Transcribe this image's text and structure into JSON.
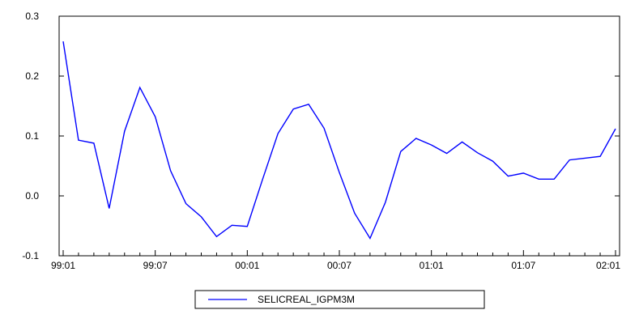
{
  "chart_data": {
    "type": "line",
    "title": "",
    "xlabel": "",
    "ylabel": "",
    "x": [
      "99:01",
      "99:02",
      "99:03",
      "99:04",
      "99:05",
      "99:06",
      "99:07",
      "99:08",
      "99:09",
      "99:10",
      "99:11",
      "99:12",
      "00:01",
      "00:02",
      "00:03",
      "00:04",
      "00:05",
      "00:06",
      "00:07",
      "00:08",
      "00:09",
      "00:10",
      "00:11",
      "00:12",
      "01:01",
      "01:02",
      "01:03",
      "01:04",
      "01:05",
      "01:06",
      "01:07",
      "01:08",
      "01:09",
      "01:10",
      "01:11",
      "01:12",
      "02:01"
    ],
    "x_ticks": [
      "99:01",
      "99:07",
      "00:01",
      "00:07",
      "01:01",
      "01:07",
      "02:01"
    ],
    "ylim": [
      -0.1,
      0.3
    ],
    "y_ticks": [
      "-0.1",
      "0.0",
      "0.1",
      "0.2",
      "0.3"
    ],
    "y_tick_values": [
      -0.1,
      0.0,
      0.1,
      0.2,
      0.3
    ],
    "series": [
      {
        "name": "SELICREAL_IGPM3M",
        "color": "#0000ff",
        "values": [
          0.258,
          0.093,
          0.088,
          -0.021,
          0.108,
          0.181,
          0.132,
          0.042,
          -0.013,
          -0.035,
          -0.068,
          -0.049,
          -0.051,
          0.028,
          0.104,
          0.145,
          0.153,
          0.113,
          0.039,
          -0.029,
          -0.071,
          -0.011,
          0.074,
          0.096,
          0.085,
          0.071,
          0.09,
          0.072,
          0.058,
          0.033,
          0.038,
          0.028,
          0.028,
          0.06,
          0.063,
          0.066,
          0.112
        ]
      }
    ],
    "legend_position": "bottom-center",
    "grid": false
  }
}
